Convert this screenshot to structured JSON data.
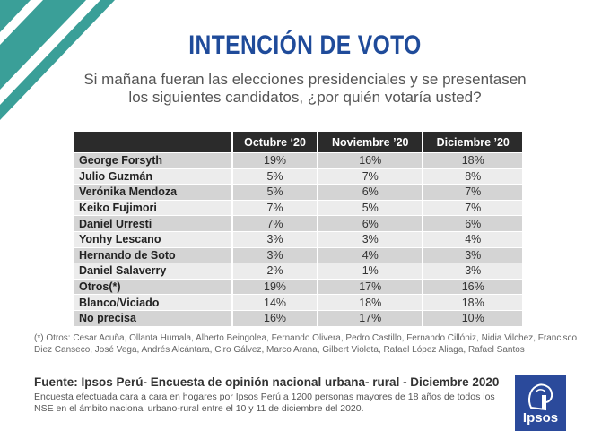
{
  "colors": {
    "title": "#1f4b9a",
    "corner_stripe": "#3a9f98",
    "header_bg": "#2b2b2b",
    "logo_bg": "#2b4a9b"
  },
  "title": "INTENCIÓN DE VOTO",
  "question_line1": "Si mañana fueran las elecciones presidenciales y se presentasen",
  "question_line2": "los siguientes candidatos, ¿por quién votaría usted?",
  "chart_data": {
    "type": "table",
    "columns": [
      "Octubre ‘20",
      "Noviembre ’20",
      "Diciembre ’20"
    ],
    "rows": [
      {
        "label": "George Forsyth",
        "values": [
          "19%",
          "16%",
          "18%"
        ]
      },
      {
        "label": "Julio Guzmán",
        "values": [
          "5%",
          "7%",
          "8%"
        ]
      },
      {
        "label": "Verónika Mendoza",
        "values": [
          "5%",
          "6%",
          "7%"
        ]
      },
      {
        "label": "Keiko Fujimori",
        "values": [
          "7%",
          "5%",
          "7%"
        ]
      },
      {
        "label": "Daniel Urresti",
        "values": [
          "7%",
          "6%",
          "6%"
        ]
      },
      {
        "label": "Yonhy Lescano",
        "values": [
          "3%",
          "3%",
          "4%"
        ]
      },
      {
        "label": "Hernando de Soto",
        "values": [
          "3%",
          "4%",
          "3%"
        ]
      },
      {
        "label": "Daniel Salaverry",
        "values": [
          "2%",
          "1%",
          "3%"
        ]
      },
      {
        "label": "Otros(*)",
        "values": [
          "19%",
          "17%",
          "16%"
        ]
      },
      {
        "label": "Blanco/Viciado",
        "values": [
          "14%",
          "18%",
          "18%"
        ]
      },
      {
        "label": "No precisa",
        "values": [
          "16%",
          "17%",
          "10%"
        ]
      }
    ]
  },
  "footnote": "(*) Otros: Cesar Acuña, Ollanta Humala, Alberto Beingolea, Fernando Olivera, Pedro Castillo, Fernando Cillóniz, Nidia Vilchez, Francisco Diez Canseco, José Vega, Andrés Alcántara, Ciro Gálvez, Marco Arana, Gilbert Violeta, Rafael López Aliaga, Rafael Santos",
  "source_title": "Fuente: Ipsos Perú- Encuesta de opinión nacional urbana- rural - Diciembre 2020",
  "source_desc": "Encuesta efectuada cara a cara en hogares por Ipsos Perú a 1200 personas mayores de 18 años de todos los NSE en el ámbito nacional urbano-rural entre el 10 y 11 de diciembre del 2020.",
  "logo_text": "Ipsos"
}
